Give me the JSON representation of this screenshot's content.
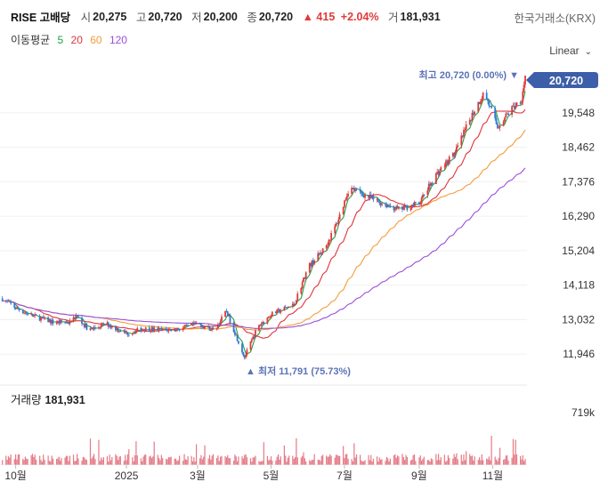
{
  "header": {
    "name": "RISE 고배당",
    "open_label": "시",
    "open": "20,275",
    "high_label": "고",
    "high": "20,720",
    "low_label": "저",
    "low": "20,200",
    "close_label": "종",
    "close": "20,720",
    "change": "▲ 415",
    "change_pct": "+2.04%",
    "volume_label": "거",
    "volume": "181,931",
    "exchange": "한국거래소(KRX)"
  },
  "moving_average": {
    "label": "이동평균",
    "periods": [
      {
        "text": "5",
        "color": "#22a045"
      },
      {
        "text": "20",
        "color": "#e0343a"
      },
      {
        "text": "60",
        "color": "#f39c3c"
      },
      {
        "text": "120",
        "color": "#9b4fd6"
      }
    ]
  },
  "scale": {
    "label": "Linear"
  },
  "colors": {
    "up": "#e03a3a",
    "down": "#2f7bd6",
    "price_tag": "#3d5ea8",
    "volume": "#e47a86"
  },
  "chart_data": {
    "type": "candlestick",
    "x_ticks": [
      "10월",
      "2025",
      "3월",
      "5월",
      "7월",
      "9월",
      "11월"
    ],
    "y_ticks": [
      11946,
      13032,
      14118,
      15204,
      16290,
      17376,
      18462,
      19548
    ],
    "y_tick_labels": [
      "11,946",
      "13,032",
      "14,118",
      "15,204",
      "16,290",
      "17,376",
      "18,462",
      "19,548"
    ],
    "ylim": [
      11560,
      21420
    ],
    "last_price": 20720,
    "last_price_label": "20,720",
    "high_annotation": "최고 20,720 (0.00%) ▼",
    "low_annotation": "▲ 최저 11,791 (75.73%)",
    "price_path_approx": [
      [
        "2024-09-20",
        13700
      ],
      [
        "2024-10-01",
        13400
      ],
      [
        "2024-10-15",
        13150
      ],
      [
        "2024-11-01",
        12950
      ],
      [
        "2024-11-15",
        12950
      ],
      [
        "2024-11-20",
        13150
      ],
      [
        "2024-12-01",
        12700
      ],
      [
        "2024-12-15",
        12900
      ],
      [
        "2025-01-01",
        12600
      ],
      [
        "2025-01-15",
        12750
      ],
      [
        "2025-02-01",
        12700
      ],
      [
        "2025-02-15",
        12750
      ],
      [
        "2025-03-01",
        12900
      ],
      [
        "2025-03-15",
        12700
      ],
      [
        "2025-03-25",
        13300
      ],
      [
        "2025-04-09",
        11850
      ],
      [
        "2025-04-20",
        12800
      ],
      [
        "2025-05-01",
        13200
      ],
      [
        "2025-05-20",
        13500
      ],
      [
        "2025-06-01",
        14700
      ],
      [
        "2025-06-15",
        15300
      ],
      [
        "2025-06-25",
        16100
      ],
      [
        "2025-07-05",
        17200
      ],
      [
        "2025-07-15",
        17000
      ],
      [
        "2025-08-01",
        16700
      ],
      [
        "2025-08-15",
        16500
      ],
      [
        "2025-09-01",
        16700
      ],
      [
        "2025-09-15",
        17600
      ],
      [
        "2025-10-01",
        18300
      ],
      [
        "2025-10-15",
        19500
      ],
      [
        "2025-10-25",
        20200
      ],
      [
        "2025-11-05",
        19100
      ],
      [
        "2025-11-15",
        19600
      ],
      [
        "2025-11-25",
        20000
      ],
      [
        "2025-11-28",
        20720
      ]
    ],
    "volume": {
      "title": "거래량",
      "value": "181,931",
      "max_tick": "719k"
    }
  }
}
